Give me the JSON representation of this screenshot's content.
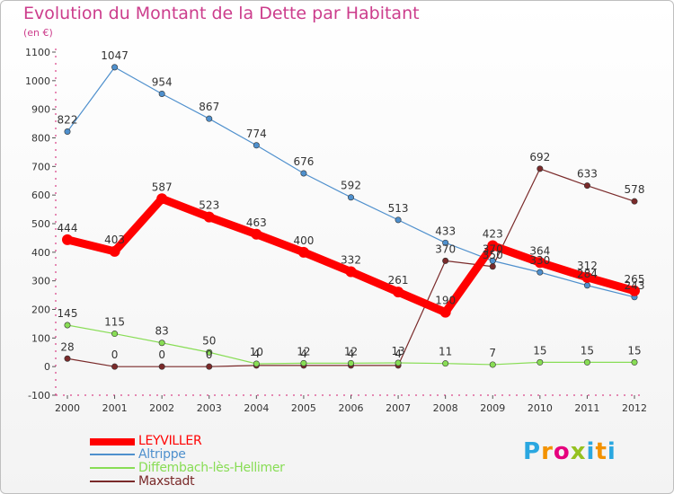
{
  "title": "Evolution du Montant de la Dette par Habitant",
  "subtitle": "(en €)",
  "chart_data": {
    "type": "line",
    "x": [
      "2000",
      "2001",
      "2002",
      "2003",
      "2004",
      "2005",
      "2006",
      "2007",
      "2008",
      "2009",
      "2010",
      "2011",
      "2012"
    ],
    "ylim": [
      -100,
      1100
    ],
    "yticks": [
      -100,
      0,
      100,
      200,
      300,
      400,
      500,
      600,
      700,
      800,
      900,
      1000,
      1100
    ],
    "grid": false,
    "legend_position": "bottom-left",
    "series": [
      {
        "name": "LEYVILLER",
        "color": "#ff0000",
        "values": [
          444,
          403,
          587,
          523,
          463,
          400,
          332,
          261,
          190,
          423,
          364,
          312,
          265
        ]
      },
      {
        "name": "Altrippe",
        "color": "#4f90cd",
        "values": [
          822,
          1047,
          954,
          867,
          774,
          676,
          592,
          513,
          433,
          370,
          330,
          284,
          243
        ]
      },
      {
        "name": "Diffembach-lès-Hellimer",
        "color": "#88dd55",
        "values": [
          145,
          115,
          83,
          50,
          10,
          12,
          12,
          13,
          11,
          7,
          15,
          15,
          15
        ]
      },
      {
        "name": "Maxstadt",
        "color": "#7a2a2a",
        "values": [
          28,
          0,
          0,
          0,
          4,
          4,
          4,
          4,
          370,
          350,
          692,
          633,
          578
        ]
      }
    ]
  },
  "logo": {
    "p": "P",
    "r": "r",
    "o": "o",
    "x": "x",
    "i": "i",
    "t": "t",
    "i2": "i"
  }
}
